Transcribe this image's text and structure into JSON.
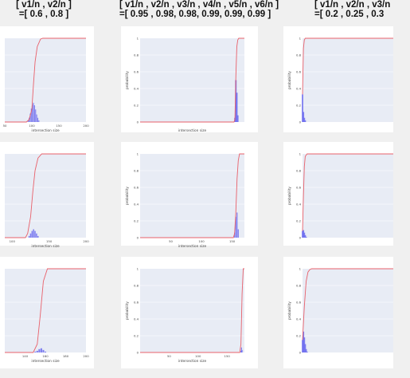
{
  "headers": [
    {
      "line1": "[ v1/n , v2/n ]",
      "line2": "=[ 0.6 , 0.8 ]"
    },
    {
      "line1": "[ v1/n , v2/n , v3/n , v4/n , v5/n , v6/n ]",
      "line2": "=[ 0.95 , 0.98, 0.98, 0.99, 0.99, 0.99 ]"
    },
    {
      "line1": "[ v1/n , v2/n , v3/n",
      "line2": "=[ 0.2 , 0.25 , 0.3"
    }
  ],
  "colors": {
    "histogram": "#6a6aee",
    "cdf": "#e8606a",
    "plot_bg": "#e8ecf5"
  },
  "chart_data": [
    {
      "type": "bar+line",
      "panel": "r1c1",
      "xlabel": "intersection size",
      "ylabel": "",
      "x_ticks": [
        "50",
        "100",
        "150",
        "200"
      ],
      "x_range": [
        50,
        200
      ],
      "y_ticks": [],
      "y_range": [
        0,
        1
      ],
      "histogram": {
        "x": [
          93,
          95,
          97,
          99,
          101,
          103,
          105,
          107,
          109,
          111,
          113
        ],
        "values": [
          0.02,
          0.05,
          0.1,
          0.16,
          0.21,
          0.23,
          0.2,
          0.15,
          0.09,
          0.05,
          0.02
        ]
      },
      "cdf": {
        "x": [
          50,
          90,
          95,
          100,
          103,
          106,
          110,
          116,
          120,
          200
        ],
        "values": [
          0,
          0,
          0.03,
          0.15,
          0.45,
          0.72,
          0.9,
          0.99,
          1,
          1
        ]
      }
    },
    {
      "type": "bar+line",
      "panel": "r1c2",
      "xlabel": "intersection size",
      "ylabel": "probability",
      "x_ticks": [],
      "x_range": [
        0,
        110
      ],
      "y_ticks": [
        "0",
        "0.2",
        "0.4",
        "0.6",
        "0.8",
        "1"
      ],
      "y_range": [
        0,
        1
      ],
      "histogram": {
        "x": [
          100,
          101,
          102,
          103
        ],
        "values": [
          0.05,
          0.5,
          0.35,
          0.08
        ]
      },
      "cdf": {
        "x": [
          0,
          99,
          100,
          101,
          102,
          103,
          104,
          110
        ],
        "values": [
          0,
          0,
          0.03,
          0.55,
          0.9,
          0.98,
          1,
          1
        ]
      }
    },
    {
      "type": "bar+line",
      "panel": "r1c3",
      "xlabel": "",
      "ylabel": "probability",
      "x_ticks": [],
      "x_range": [
        0,
        100
      ],
      "y_ticks": [
        "0",
        "0.2",
        "0.4",
        "0.6",
        "0.8",
        "1"
      ],
      "y_range": [
        0,
        1
      ],
      "histogram": {
        "x": [
          0,
          1,
          2,
          3
        ],
        "values": [
          0.33,
          0.12,
          0.05,
          0.02
        ]
      },
      "cdf": {
        "x": [
          0,
          0.5,
          1,
          2,
          3,
          100
        ],
        "values": [
          0.33,
          0.62,
          0.88,
          0.98,
          1,
          1
        ]
      }
    },
    {
      "type": "bar+line",
      "panel": "r2c1",
      "xlabel": "intersection size",
      "ylabel": "",
      "x_ticks": [
        "100",
        "150",
        "200"
      ],
      "x_range": [
        90,
        200
      ],
      "y_ticks": [],
      "y_range": [
        0,
        1
      ],
      "histogram": {
        "x": [
          123,
          125,
          127,
          129,
          131,
          133,
          135
        ],
        "values": [
          0.02,
          0.05,
          0.08,
          0.1,
          0.08,
          0.05,
          0.02
        ]
      },
      "cdf": {
        "x": [
          90,
          118,
          121,
          125,
          128,
          131,
          135,
          140,
          200
        ],
        "values": [
          0,
          0,
          0.05,
          0.25,
          0.55,
          0.8,
          0.95,
          1,
          1
        ]
      }
    },
    {
      "type": "bar+line",
      "panel": "r2c2",
      "xlabel": "intersection size",
      "ylabel": "probability",
      "x_ticks": [
        "50",
        "100",
        "150"
      ],
      "x_range": [
        0,
        170
      ],
      "y_ticks": [
        "0",
        "0.2",
        "0.4",
        "0.6",
        "0.8",
        "1"
      ],
      "y_range": [
        0,
        1
      ],
      "histogram": {
        "x": [
          154,
          156,
          158,
          160
        ],
        "values": [
          0.06,
          0.25,
          0.3,
          0.1
        ]
      },
      "cdf": {
        "x": [
          0,
          152,
          154,
          156,
          158,
          160,
          162,
          170
        ],
        "values": [
          0,
          0,
          0.05,
          0.3,
          0.7,
          0.92,
          1,
          1
        ]
      }
    },
    {
      "type": "bar+line",
      "panel": "r2c3",
      "xlabel": "",
      "ylabel": "probability",
      "x_ticks": [],
      "x_range": [
        0,
        100
      ],
      "y_ticks": [
        "0",
        "0.2",
        "0.4",
        "0.6",
        "0.8",
        "1"
      ],
      "y_range": [
        0,
        1
      ],
      "histogram": {
        "x": [
          0,
          1,
          2,
          3,
          4
        ],
        "values": [
          0.08,
          0.09,
          0.06,
          0.03,
          0.01
        ]
      },
      "cdf": {
        "x": [
          0,
          1,
          2,
          3,
          5,
          100
        ],
        "values": [
          0.08,
          0.5,
          0.85,
          0.97,
          1,
          1
        ]
      }
    },
    {
      "type": "bar+line",
      "panel": "r3c1",
      "xlabel": "intersection size",
      "ylabel": "",
      "x_ticks": [
        "140",
        "160",
        "180",
        "200"
      ],
      "x_range": [
        120,
        200
      ],
      "y_ticks": [],
      "y_range": [
        0,
        1
      ],
      "histogram": {
        "x": [
          150,
          152,
          154,
          156,
          158,
          160
        ],
        "values": [
          0.01,
          0.02,
          0.04,
          0.05,
          0.03,
          0.01
        ]
      },
      "cdf": {
        "x": [
          120,
          148,
          152,
          155,
          158,
          162,
          200
        ],
        "values": [
          0,
          0,
          0.1,
          0.45,
          0.85,
          1,
          1
        ]
      }
    },
    {
      "type": "bar+line",
      "panel": "r3c2",
      "xlabel": "intersection size",
      "ylabel": "probability",
      "x_ticks": [
        "50",
        "100",
        "150"
      ],
      "x_range": [
        0,
        180
      ],
      "y_ticks": [
        "0",
        "0.2",
        "0.4",
        "0.6",
        "0.8",
        "1"
      ],
      "y_range": [
        0,
        1
      ],
      "histogram": {
        "x": [
          174,
          175,
          176
        ],
        "values": [
          0.02,
          0.06,
          0.03
        ]
      },
      "cdf": {
        "x": [
          0,
          172,
          174,
          176,
          178,
          180
        ],
        "values": [
          0,
          0,
          0.1,
          0.7,
          1,
          1
        ]
      }
    },
    {
      "type": "bar+line",
      "panel": "r3c3",
      "xlabel": "",
      "ylabel": "probability",
      "x_ticks": [],
      "x_range": [
        0,
        100
      ],
      "y_ticks": [
        "0",
        "0.2",
        "0.4",
        "0.6",
        "0.8",
        "1"
      ],
      "y_range": [
        0,
        1
      ],
      "histogram": {
        "x": [
          0,
          1,
          2,
          3,
          4,
          5
        ],
        "values": [
          0.15,
          0.25,
          0.18,
          0.1,
          0.04,
          0.01
        ]
      },
      "cdf": {
        "x": [
          0,
          2,
          4,
          6,
          8,
          10,
          100
        ],
        "values": [
          0.15,
          0.55,
          0.85,
          0.96,
          0.99,
          1,
          1
        ]
      }
    }
  ]
}
